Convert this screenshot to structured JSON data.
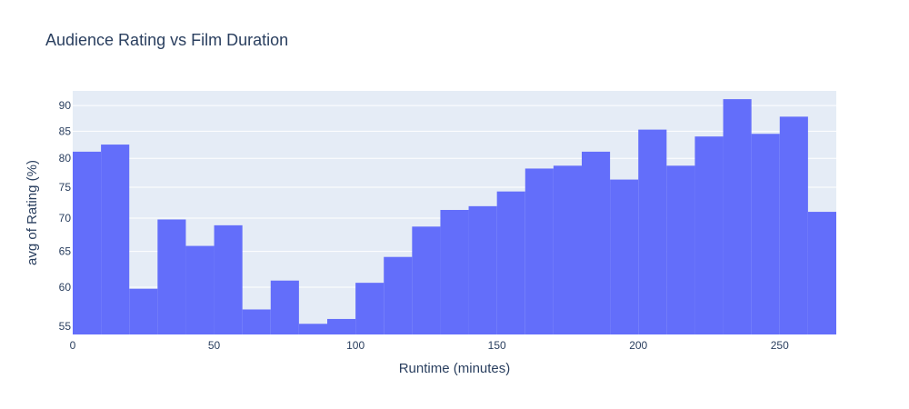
{
  "chart_data": {
    "type": "bar",
    "title": "Audience Rating vs Film Duration",
    "xlabel": "Runtime (minutes)",
    "ylabel": "avg of Rating (%)",
    "x_bin_width": 10,
    "x_bins_start": [
      0,
      10,
      20,
      30,
      40,
      50,
      60,
      70,
      80,
      90,
      100,
      110,
      120,
      130,
      140,
      150,
      160,
      170,
      180,
      190,
      200,
      210,
      220,
      230,
      240,
      250,
      260
    ],
    "values": [
      81.2,
      82.5,
      59.8,
      69.8,
      65.8,
      68.9,
      57.1,
      60.9,
      55.3,
      55.9,
      60.6,
      64.2,
      68.7,
      71.3,
      71.9,
      74.3,
      78.2,
      78.7,
      81.2,
      76.3,
      85.3,
      78.7,
      84.0,
      91.3,
      84.5,
      87.8,
      71.0
    ],
    "xlim": [
      0,
      270
    ],
    "ylim": [
      54,
      93
    ],
    "y_scale": "log",
    "x_ticks": [
      0,
      50,
      100,
      150,
      200,
      250
    ],
    "y_ticks": [
      55,
      60,
      65,
      70,
      75,
      80,
      85,
      90
    ],
    "grid": true,
    "legend": "none",
    "colors": {
      "bar": "#636efa",
      "plot_bg": "#e5ecf6",
      "grid": "#ffffff",
      "text": "#2a3f5f",
      "paper_bg": "#ffffff"
    }
  }
}
